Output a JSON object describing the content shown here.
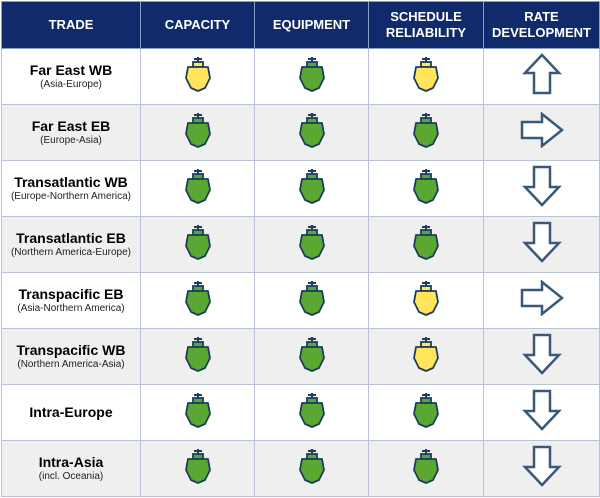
{
  "header": {
    "trade": "TRADE",
    "capacity": "CAPACITY",
    "equipment": "EQUIPMENT",
    "schedule_line1": "SCHEDULE",
    "schedule_line2": "RELIABILITY",
    "rate_line1": "RATE",
    "rate_line2": "DEVELOPMENT"
  },
  "colors": {
    "header_bg": "#102a6b",
    "green": "#5aa832",
    "yellow": "#ffe45c",
    "ship_outline": "#1e3d5c",
    "arrow_outline": "#3a5878"
  },
  "rows": [
    {
      "name": "Far East WB",
      "sub": "(Asia-Europe)",
      "capacity": "yellow",
      "equipment": "green",
      "schedule": "yellow",
      "rate": "up"
    },
    {
      "name": "Far East EB",
      "sub": "(Europe-Asia)",
      "capacity": "green",
      "equipment": "green",
      "schedule": "green",
      "rate": "right"
    },
    {
      "name": "Transatlantic WB",
      "sub": "(Europe-Northern America)",
      "capacity": "green",
      "equipment": "green",
      "schedule": "green",
      "rate": "down"
    },
    {
      "name": "Transatlantic EB",
      "sub": "(Northern America-Europe)",
      "capacity": "green",
      "equipment": "green",
      "schedule": "green",
      "rate": "down"
    },
    {
      "name": "Transpacific EB",
      "sub": "(Asia-Northern America)",
      "capacity": "green",
      "equipment": "green",
      "schedule": "yellow",
      "rate": "right"
    },
    {
      "name": "Transpacific WB",
      "sub": "(Northern America-Asia)",
      "capacity": "green",
      "equipment": "green",
      "schedule": "yellow",
      "rate": "down"
    },
    {
      "name": "Intra-Europe",
      "sub": "",
      "capacity": "green",
      "equipment": "green",
      "schedule": "green",
      "rate": "down"
    },
    {
      "name": "Intra-Asia",
      "sub": "(incl. Oceania)",
      "capacity": "green",
      "equipment": "green",
      "schedule": "green",
      "rate": "down"
    }
  ]
}
